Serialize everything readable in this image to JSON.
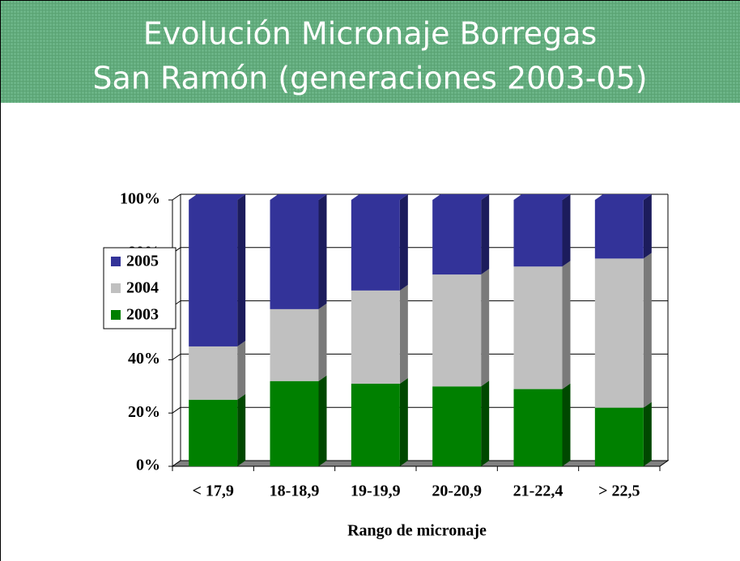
{
  "chart_data": {
    "type": "bar3d_stacked",
    "title_lines": [
      "Evolución Micronaje Borregas",
      "San Ramón (generaciones 2003-05)"
    ],
    "x_label": "Rango de micronaje",
    "categories": [
      "< 17,9",
      "18-18,9",
      "19-19,9",
      "20-20,9",
      "21-22,4",
      "> 22,5"
    ],
    "series": [
      {
        "name": "2003",
        "color": "#008000",
        "side": "#004800",
        "values": [
          25,
          32,
          31,
          30,
          29,
          22
        ]
      },
      {
        "name": "2004",
        "color": "#c0c0c0",
        "side": "#7a7a7a",
        "values": [
          20,
          27,
          35,
          42,
          46,
          56
        ]
      },
      {
        "name": "2005",
        "color": "#333399",
        "side": "#1c1c5c",
        "values": [
          55,
          41,
          34,
          28,
          25,
          22
        ]
      }
    ],
    "ylim": [
      0,
      100
    ],
    "yticks": [
      {
        "value": 0,
        "label": "0%"
      },
      {
        "value": 20,
        "label": "20%"
      },
      {
        "value": 40,
        "label": "40%"
      },
      {
        "value": 60,
        "label": "60%"
      },
      {
        "value": 80,
        "label": "80%"
      },
      {
        "value": 100,
        "label": "100%"
      }
    ],
    "grid": true,
    "legend": "left"
  }
}
